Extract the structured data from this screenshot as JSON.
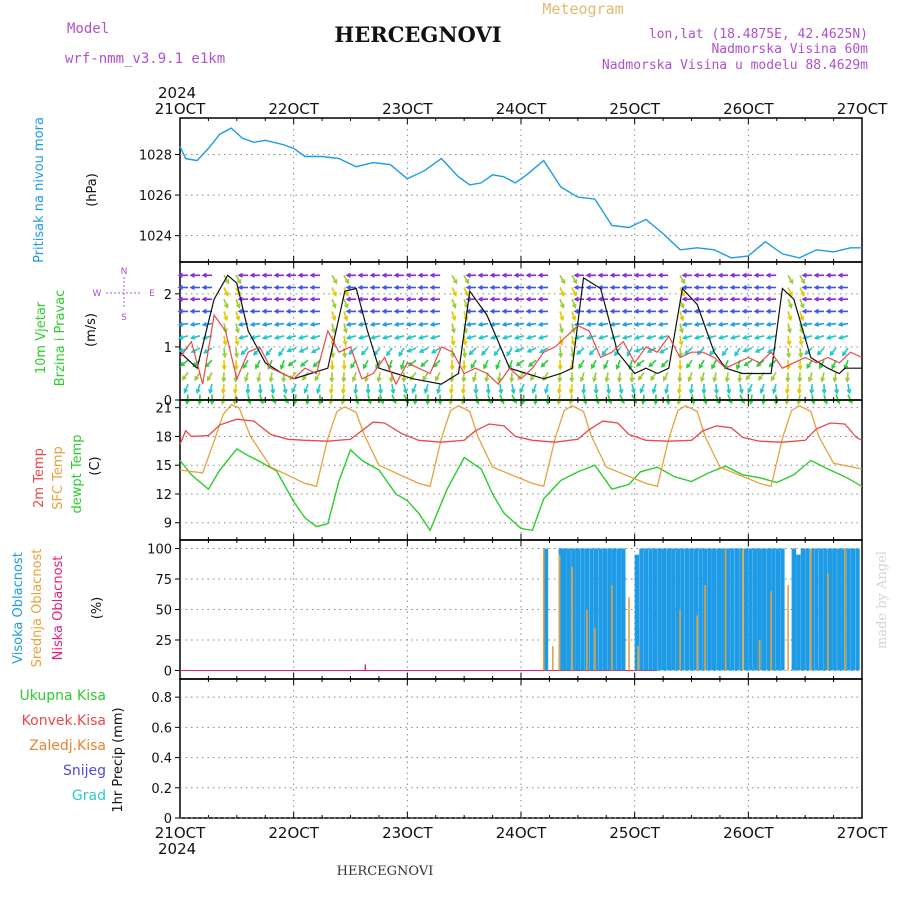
{
  "header": {
    "model_label": "Model",
    "model_name": "wrf-nmm_v3.9.1 e1km",
    "station": "HERCEGNOVI",
    "product": "Meteogram",
    "lonlat": "lon,lat (18.4875E, 42.4625N)",
    "altitude": "Nadmorska Visina 60m",
    "model_altitude": "Nadmorska Visina u modelu 88.4629m",
    "footer_station": "HERCEGNOVI",
    "credit": "made by Angel"
  },
  "time_axis": {
    "year": "2024",
    "ticks": [
      "21OCT",
      "22OCT",
      "23OCT",
      "24OCT",
      "25OCT",
      "26OCT",
      "27OCT"
    ],
    "days": 6
  },
  "colors": {
    "pressure": "#1e9be6",
    "temp2m": "#e84a4a",
    "sfc_temp": "#e6a23c",
    "dewpoint": "#2ecc2e",
    "high_cloud": "#1e9be6",
    "mid_cloud": "#e6a23c",
    "low_cloud": "#e0207a",
    "precip_total": "#2ecc2e",
    "precip_conv": "#e84a4a",
    "precip_frz": "#f08030",
    "snow": "#4a4ae0",
    "hail": "#2ec8c8",
    "wind_label": "#2ecc2e",
    "compass": "#b050d0"
  },
  "chart_data": [
    {
      "type": "line",
      "title": "",
      "ylabel_lines": [
        "Pritisak na nivou mora",
        "(hPa)"
      ],
      "y_ticks": [
        1024,
        1026,
        1028
      ],
      "ylim": [
        1022.7,
        1029.8
      ],
      "series": [
        {
          "x": [
            0,
            0.05,
            0.15,
            0.25,
            0.35,
            0.45,
            0.55,
            0.65,
            0.75,
            0.9,
            1.0,
            1.1,
            1.25,
            1.4,
            1.55,
            1.7,
            1.85,
            2.0,
            2.15,
            2.3,
            2.45,
            2.55,
            2.65,
            2.75,
            2.85,
            2.95,
            3.05,
            3.2,
            3.35,
            3.5,
            3.65,
            3.8,
            3.95,
            4.1,
            4.25,
            4.4,
            4.55,
            4.7,
            4.85,
            5.0,
            5.15,
            5.3,
            5.45,
            5.6,
            5.75,
            5.9,
            6.0
          ],
          "values": [
            1028.4,
            1027.8,
            1027.7,
            1028.3,
            1029.0,
            1029.3,
            1028.8,
            1028.6,
            1028.7,
            1028.5,
            1028.3,
            1027.9,
            1027.9,
            1027.8,
            1027.4,
            1027.6,
            1027.5,
            1026.8,
            1027.2,
            1027.8,
            1026.9,
            1026.5,
            1026.6,
            1027.0,
            1026.9,
            1026.6,
            1027.0,
            1027.7,
            1026.4,
            1025.9,
            1025.8,
            1024.5,
            1024.4,
            1024.8,
            1024.1,
            1023.3,
            1023.4,
            1023.3,
            1022.9,
            1023.0,
            1023.7,
            1023.1,
            1022.9,
            1023.3,
            1023.2,
            1023.4,
            1023.4
          ]
        }
      ]
    },
    {
      "type": "line",
      "title": "",
      "ylabel_lines": [
        "10m Vjetar",
        "Brzina i Pravac",
        "(m/s)"
      ],
      "compass": {
        "n": "N",
        "w": "W",
        "e": "E",
        "s": "S"
      },
      "y_ticks": [
        0,
        1,
        2
      ],
      "ylim": [
        0,
        2.6
      ],
      "series": [
        {
          "name": "speed",
          "x": [
            0,
            0.1,
            0.2,
            0.3,
            0.4,
            0.5,
            0.6,
            0.7,
            0.8,
            0.9,
            1.0,
            1.1,
            1.2,
            1.3,
            1.4,
            1.5,
            1.6,
            1.7,
            1.8,
            1.9,
            2.0,
            2.1,
            2.2,
            2.3,
            2.4,
            2.5,
            2.6,
            2.7,
            2.8,
            2.9,
            3.0,
            3.1,
            3.2,
            3.3,
            3.4,
            3.5,
            3.6,
            3.7,
            3.8,
            3.9,
            4.0,
            4.1,
            4.2,
            4.3,
            4.4,
            4.5,
            4.6,
            4.7,
            4.8,
            4.9,
            5.0,
            5.1,
            5.2,
            5.3,
            5.4,
            5.5,
            5.6,
            5.7,
            5.8,
            5.9,
            6.0
          ],
          "values": [
            0.8,
            1.1,
            0.3,
            1.6,
            1.3,
            0.4,
            0.9,
            1.0,
            0.6,
            0.5,
            0.4,
            0.6,
            0.5,
            1.3,
            0.9,
            1.0,
            0.4,
            0.5,
            0.8,
            0.3,
            0.7,
            0.6,
            0.5,
            1.0,
            0.9,
            0.5,
            0.6,
            0.5,
            0.3,
            0.6,
            0.4,
            0.6,
            0.9,
            1.0,
            1.2,
            1.4,
            1.3,
            0.8,
            0.9,
            1.1,
            0.7,
            1.0,
            0.9,
            1.2,
            0.8,
            0.9,
            0.9,
            0.8,
            0.6,
            0.7,
            0.8,
            0.7,
            0.9,
            0.6,
            0.7,
            0.8,
            0.7,
            0.8,
            0.7,
            0.9,
            0.8
          ]
        },
        {
          "name": "gust",
          "x": [
            0,
            0.15,
            0.3,
            0.42,
            0.5,
            0.6,
            0.75,
            0.9,
            1.0,
            1.15,
            1.3,
            1.45,
            1.55,
            1.65,
            1.75,
            1.9,
            2.05,
            2.3,
            2.45,
            2.55,
            2.7,
            2.9,
            3.05,
            3.2,
            3.35,
            3.45,
            3.55,
            3.7,
            3.85,
            4.0,
            4.1,
            4.2,
            4.3,
            4.42,
            4.55,
            4.7,
            4.8,
            4.95,
            5.1,
            5.2,
            5.3,
            5.4,
            5.55,
            5.7,
            5.8,
            5.85,
            6.0
          ],
          "values": [
            0.9,
            0.6,
            1.9,
            2.35,
            2.2,
            1.3,
            0.7,
            0.5,
            0.4,
            0.5,
            0.6,
            2.05,
            2.1,
            1.3,
            0.6,
            0.5,
            0.4,
            0.3,
            0.5,
            2.05,
            1.6,
            0.6,
            0.5,
            0.4,
            0.5,
            0.6,
            2.3,
            2.1,
            0.9,
            0.5,
            0.6,
            0.5,
            0.6,
            2.1,
            1.8,
            0.9,
            0.6,
            0.5,
            0.5,
            0.5,
            2.1,
            1.9,
            0.8,
            0.6,
            0.5,
            0.6,
            0.6
          ]
        }
      ]
    },
    {
      "type": "line",
      "title": "",
      "ylabel_lines": [
        "2m Temp",
        "SFC Temp",
        "dewpt Temp",
        "(C)"
      ],
      "y_ticks": [
        9,
        12,
        15,
        18,
        21
      ],
      "ylim": [
        7.2,
        21.8
      ],
      "series": [
        {
          "name": "2m Temp",
          "x": [
            0,
            0.05,
            0.1,
            0.25,
            0.35,
            0.5,
            0.65,
            0.8,
            0.95,
            1.1,
            1.3,
            1.5,
            1.6,
            1.7,
            1.8,
            1.95,
            2.1,
            2.3,
            2.5,
            2.6,
            2.72,
            2.85,
            2.95,
            3.1,
            3.3,
            3.5,
            3.6,
            3.72,
            3.85,
            3.95,
            4.1,
            4.3,
            4.5,
            4.6,
            4.72,
            4.85,
            4.95,
            5.1,
            5.3,
            5.5,
            5.6,
            5.72,
            5.85,
            5.95,
            6.0
          ],
          "values": [
            17.2,
            18.6,
            18.0,
            18.1,
            19.2,
            19.8,
            19.6,
            18.2,
            17.7,
            17.6,
            17.5,
            17.7,
            18.6,
            19.5,
            19.4,
            18.3,
            17.6,
            17.4,
            17.6,
            18.6,
            19.3,
            19.1,
            18.0,
            17.6,
            17.4,
            17.7,
            18.7,
            19.6,
            19.4,
            18.2,
            17.6,
            17.5,
            17.6,
            18.6,
            19.1,
            18.9,
            17.9,
            17.5,
            17.4,
            17.6,
            18.8,
            19.4,
            19.3,
            17.9,
            17.6
          ]
        },
        {
          "name": "SFC Temp",
          "x": [
            0,
            0.2,
            0.3,
            0.38,
            0.45,
            0.52,
            0.62,
            0.8,
            1.1,
            1.2,
            1.3,
            1.38,
            1.45,
            1.55,
            1.62,
            1.75,
            2.1,
            2.2,
            2.3,
            2.38,
            2.45,
            2.55,
            2.62,
            2.75,
            3.1,
            3.2,
            3.3,
            3.38,
            3.45,
            3.55,
            3.62,
            3.75,
            4.1,
            4.2,
            4.3,
            4.38,
            4.45,
            4.55,
            4.62,
            4.75,
            5.1,
            5.2,
            5.3,
            5.38,
            5.45,
            5.55,
            5.62,
            5.75,
            6.0
          ],
          "values": [
            14.5,
            14.2,
            17.5,
            20.3,
            21.3,
            21.0,
            18.0,
            14.8,
            13.1,
            12.8,
            17.8,
            20.6,
            21.1,
            20.5,
            18.2,
            15.0,
            13.1,
            12.8,
            17.8,
            20.7,
            21.2,
            20.6,
            18.0,
            14.8,
            13.1,
            12.8,
            17.8,
            20.7,
            21.2,
            20.6,
            18.0,
            14.8,
            13.1,
            12.8,
            17.8,
            20.7,
            21.2,
            20.6,
            18.0,
            14.8,
            13.1,
            12.8,
            17.8,
            20.7,
            21.2,
            20.6,
            18.0,
            15.2,
            14.6
          ]
        },
        {
          "name": "dewpt Temp",
          "x": [
            0,
            0.1,
            0.25,
            0.35,
            0.5,
            0.6,
            0.7,
            0.85,
            1.0,
            1.1,
            1.2,
            1.3,
            1.4,
            1.5,
            1.6,
            1.75,
            1.9,
            2.0,
            2.1,
            2.2,
            2.35,
            2.5,
            2.65,
            2.75,
            2.85,
            3.0,
            3.1,
            3.2,
            3.35,
            3.5,
            3.65,
            3.8,
            3.95,
            4.05,
            4.2,
            4.35,
            4.5,
            4.65,
            4.8,
            4.95,
            5.1,
            5.25,
            5.4,
            5.55,
            5.7,
            5.85,
            6.0
          ],
          "values": [
            15.5,
            14.0,
            12.5,
            14.5,
            16.7,
            16.0,
            15.4,
            14.4,
            11.2,
            9.5,
            8.6,
            8.9,
            13.4,
            16.6,
            15.5,
            14.5,
            12.0,
            11.3,
            10.0,
            8.2,
            12.5,
            15.8,
            14.6,
            12.0,
            10.0,
            8.4,
            8.2,
            11.5,
            13.4,
            14.3,
            15.0,
            12.5,
            13.0,
            14.3,
            14.8,
            13.8,
            13.3,
            14.2,
            14.9,
            14.0,
            13.7,
            13.2,
            14.0,
            15.5,
            14.6,
            13.8,
            12.8
          ]
        }
      ]
    },
    {
      "type": "bar",
      "title": "",
      "ylabel_lines": [
        "Visoka Oblacnost",
        "Srednja Oblacnost",
        "Niska Oblacnost",
        "(%)"
      ],
      "y_ticks": [
        0,
        25,
        50,
        75,
        100
      ],
      "ylim": [
        -7,
        107
      ],
      "series": [
        {
          "name": "Visoka Oblacnost",
          "x": [
            3.22,
            3.35,
            3.38,
            3.42,
            3.46,
            3.5,
            3.54,
            3.58,
            3.62,
            3.66,
            3.7,
            3.74,
            3.78,
            3.82,
            3.86,
            3.9,
            4.02,
            4.06,
            4.1,
            4.14,
            4.18,
            4.22,
            4.26,
            4.3,
            4.34,
            4.38,
            4.42,
            4.46,
            4.5,
            4.54,
            4.58,
            4.62,
            4.66,
            4.7,
            4.74,
            4.78,
            4.82,
            4.86,
            4.9,
            4.94,
            4.98,
            5.02,
            5.06,
            5.1,
            5.14,
            5.18,
            5.22,
            5.26,
            5.3,
            5.4,
            5.44,
            5.48,
            5.52,
            5.56,
            5.6,
            5.64,
            5.68,
            5.72,
            5.76,
            5.8,
            5.84,
            5.88,
            5.92,
            5.96
          ],
          "values": [
            100,
            100,
            100,
            100,
            100,
            100,
            100,
            100,
            100,
            100,
            100,
            100,
            100,
            100,
            100,
            100,
            95,
            100,
            100,
            100,
            100,
            100,
            100,
            100,
            100,
            100,
            100,
            100,
            100,
            100,
            100,
            100,
            100,
            100,
            100,
            100,
            100,
            100,
            100,
            100,
            100,
            100,
            100,
            100,
            100,
            100,
            100,
            100,
            100,
            100,
            95,
            100,
            100,
            100,
            100,
            100,
            100,
            100,
            100,
            100,
            100,
            100,
            100,
            100
          ]
        },
        {
          "name": "Srednja Oblacnost",
          "x": [
            3.2,
            3.28,
            3.34,
            3.45,
            3.58,
            3.65,
            3.8,
            3.95,
            4.03,
            4.4,
            4.55,
            4.62,
            4.8,
            4.95,
            5.1,
            5.2,
            5.35,
            5.55,
            5.7,
            5.85
          ],
          "values": [
            100,
            20,
            95,
            85,
            50,
            35,
            70,
            60,
            20,
            50,
            45,
            70,
            100,
            100,
            25,
            65,
            70,
            100,
            80,
            100
          ]
        },
        {
          "name": "Niska Oblacnost",
          "x": [
            1.63
          ],
          "values": [
            5
          ]
        }
      ]
    },
    {
      "type": "bar",
      "title": "",
      "ylabel_lines": [
        "Ukupna Kisa",
        "Konvek.Kisa",
        "Zaledj.Kisa",
        "Snijeg",
        "Grad",
        "1hr Precip (mm)"
      ],
      "y_ticks": [
        "0",
        "0.2",
        "0.4",
        "0.6",
        "0.8"
      ],
      "ylim": [
        0,
        0.92
      ],
      "series": []
    }
  ]
}
